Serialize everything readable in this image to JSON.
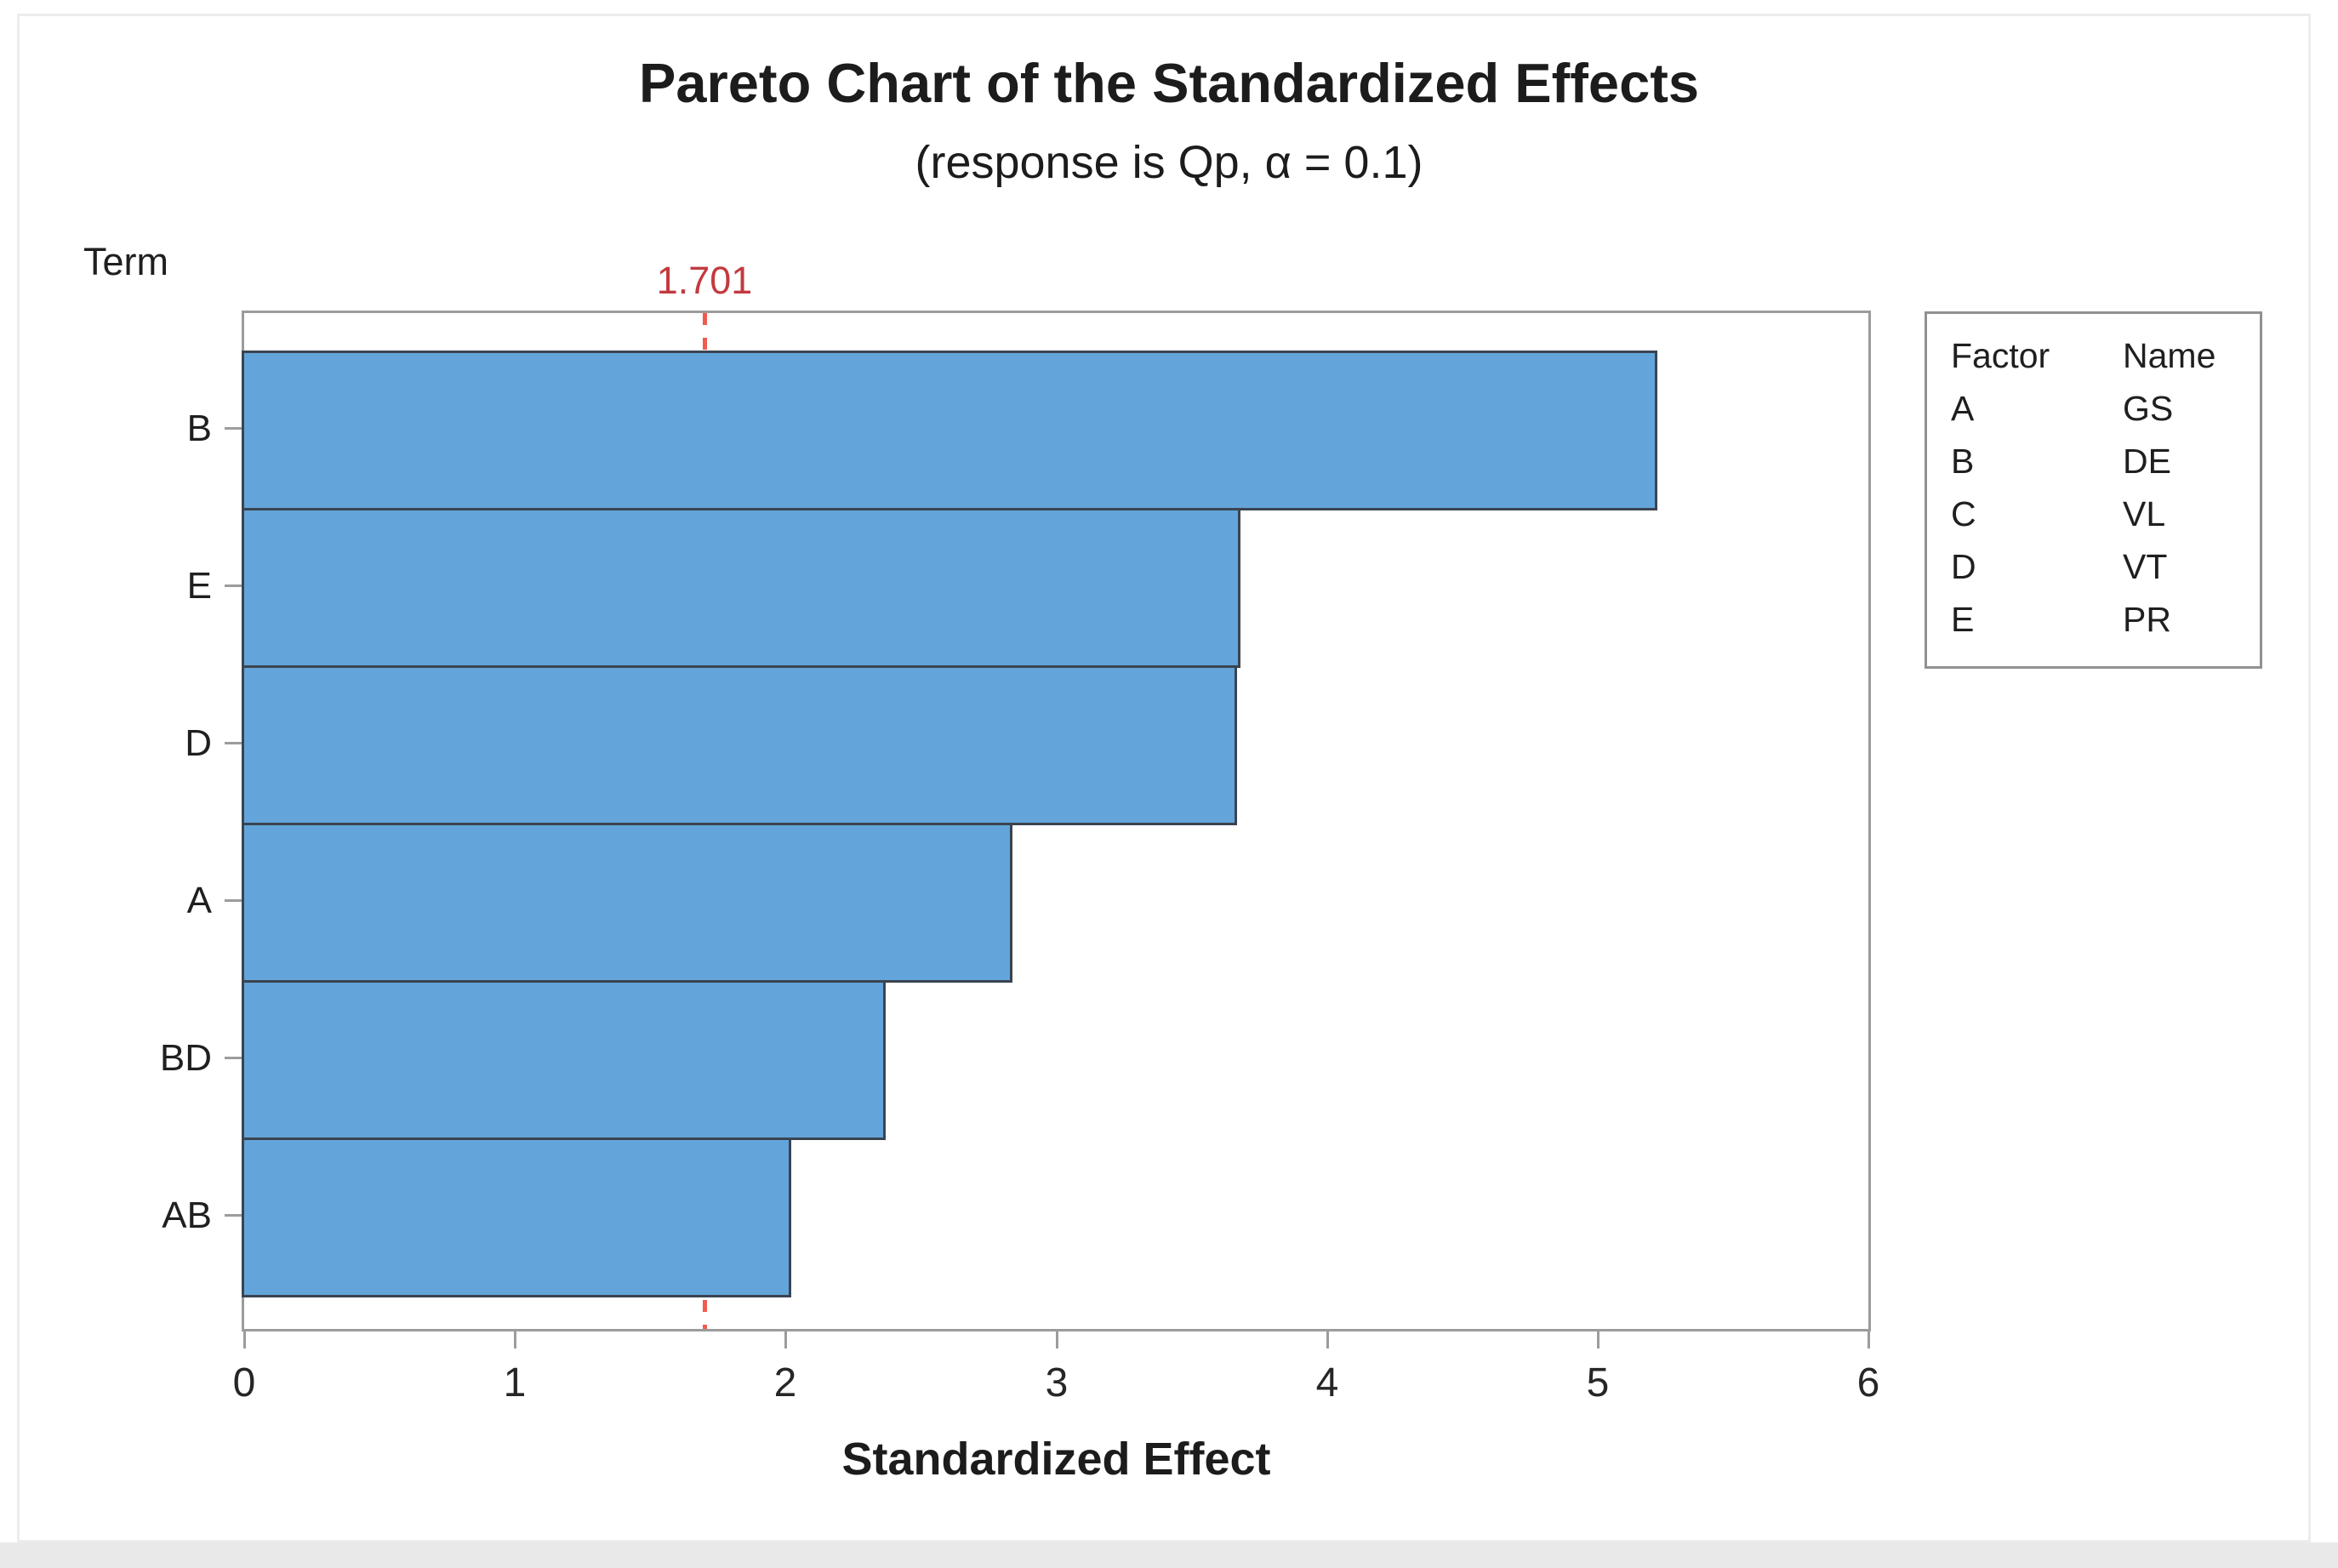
{
  "page": {
    "background": "#ffffff",
    "bottom_band_color": "#e9e9e9",
    "outer_frame_color": "#ececec"
  },
  "chart_data": {
    "type": "bar",
    "orientation": "horizontal",
    "title": "Pareto Chart of the Standardized Effects",
    "subtitle": "(response is Qp, α = 0.1)",
    "term_axis_label": "Term",
    "xlabel": "Standardized Effect",
    "categories": [
      "B",
      "E",
      "D",
      "A",
      "BD",
      "AB"
    ],
    "values": [
      5.21,
      3.67,
      3.66,
      2.83,
      2.36,
      2.01
    ],
    "xlim": [
      0,
      6
    ],
    "xticks": [
      "0",
      "1",
      "2",
      "3",
      "4",
      "5",
      "6"
    ],
    "grid": "off",
    "reference_line": {
      "value": 1.701,
      "label": "1.701",
      "style": "dashed"
    },
    "legend": {
      "position": "right",
      "headers": [
        "Factor",
        "Name"
      ],
      "rows": [
        {
          "factor": "A",
          "name": "GS"
        },
        {
          "factor": "B",
          "name": "DE"
        },
        {
          "factor": "C",
          "name": "VL"
        },
        {
          "factor": "D",
          "name": "VT"
        },
        {
          "factor": "E",
          "name": "PR"
        }
      ]
    },
    "colors": {
      "bar_fill": "#63a5da",
      "bar_border": "#3a4450",
      "axis_frame": "#9c9c9c",
      "reference_line": "#f15b4e",
      "reference_label": "#c23a3f",
      "text": "#1f1f1f"
    }
  }
}
